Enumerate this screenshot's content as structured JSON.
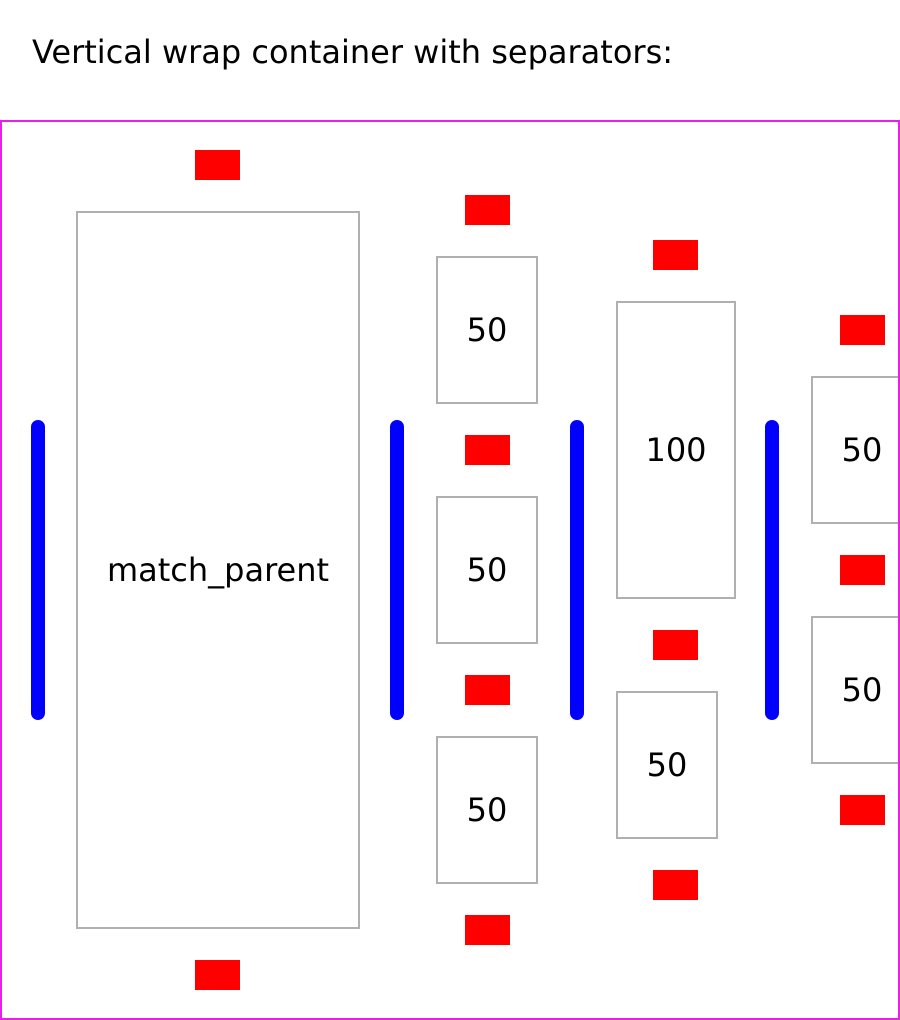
{
  "title": "Vertical wrap container with separators:",
  "colors": {
    "container_border": "#e91ee9",
    "item_separator": "#ff0000",
    "column_separator": "#0000ff",
    "item_border": "#b0b0b0"
  },
  "columns": [
    {
      "items": [
        {
          "label": "match_parent"
        }
      ]
    },
    {
      "items": [
        {
          "label": "50"
        },
        {
          "label": "50"
        },
        {
          "label": "50"
        }
      ]
    },
    {
      "items": [
        {
          "label": "100"
        },
        {
          "label": "50"
        }
      ]
    },
    {
      "items": [
        {
          "label": "50"
        },
        {
          "label": "50"
        }
      ]
    }
  ]
}
